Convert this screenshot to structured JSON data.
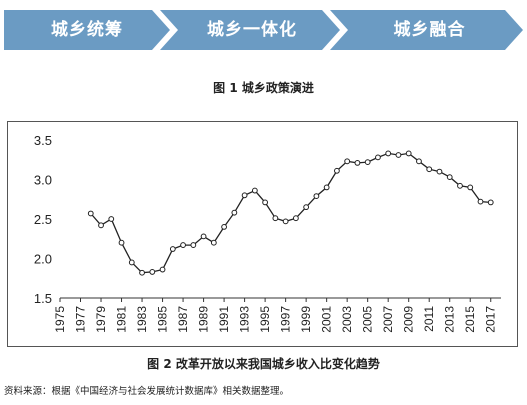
{
  "process": {
    "steps": [
      "城乡统筹",
      "城乡一体化",
      "城乡融合"
    ],
    "caption": "图 1   城乡政策演进",
    "color": "#6b9bc3"
  },
  "figure2": {
    "caption": "图 2   改革开放以来我国城乡收入比变化趋势"
  },
  "source": "资料来源：根据《中国经济与社会发展统计数据库》相关数据整理。",
  "chart_data": {
    "type": "line",
    "title": "",
    "xlabel": "",
    "ylabel": "",
    "ylim": [
      1.5,
      3.5
    ],
    "yticks": [
      "1.5",
      "2.0",
      "2.5",
      "3.0",
      "3.5"
    ],
    "xlim": [
      1975,
      2018
    ],
    "xticks": [
      "1975",
      "1977",
      "1979",
      "1981",
      "1983",
      "1985",
      "1987",
      "1989",
      "1991",
      "1993",
      "1995",
      "1997",
      "1999",
      "2001",
      "2003",
      "2005",
      "2007",
      "2009",
      "2011",
      "2013",
      "2015",
      "2017"
    ],
    "grid": false,
    "legend": "none",
    "line_color": "#222222",
    "series": [
      {
        "x": [
          1978,
          1979,
          1980,
          1981,
          1982,
          1983,
          1984,
          1985,
          1986,
          1987,
          1988,
          1989,
          1990,
          1991,
          1992,
          1993,
          1994,
          1995,
          1996,
          1997,
          1998,
          1999,
          2000,
          2001,
          2002,
          2003,
          2004,
          2005,
          2006,
          2007,
          2008,
          2009,
          2010,
          2011,
          2012,
          2013,
          2014,
          2015,
          2016,
          2017
        ],
        "values": [
          2.57,
          2.42,
          2.5,
          2.2,
          1.95,
          1.82,
          1.83,
          1.86,
          2.12,
          2.17,
          2.17,
          2.28,
          2.2,
          2.4,
          2.58,
          2.8,
          2.86,
          2.71,
          2.51,
          2.47,
          2.51,
          2.65,
          2.79,
          2.9,
          3.11,
          3.23,
          3.21,
          3.22,
          3.28,
          3.33,
          3.31,
          3.33,
          3.23,
          3.13,
          3.1,
          3.03,
          2.92,
          2.9,
          2.72,
          2.71
        ]
      }
    ]
  }
}
